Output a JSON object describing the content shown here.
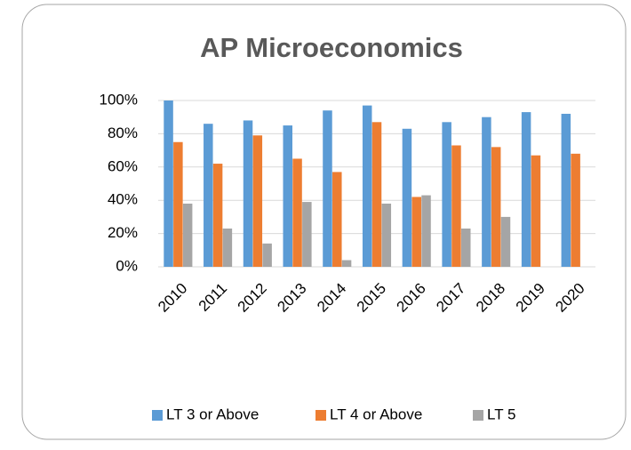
{
  "chart_data": {
    "type": "bar",
    "title": "AP Microeconomics",
    "categories": [
      "2010",
      "2011",
      "2012",
      "2013",
      "2014",
      "2015",
      "2016",
      "2017",
      "2018",
      "2019",
      "2020"
    ],
    "series": [
      {
        "name": "LT 3 or Above",
        "color": "#5b9bd5",
        "values": [
          100,
          86,
          88,
          85,
          94,
          97,
          83,
          87,
          90,
          93,
          92
        ]
      },
      {
        "name": "LT 4 or Above",
        "color": "#ed7d31",
        "values": [
          75,
          62,
          79,
          65,
          57,
          87,
          42,
          73,
          72,
          67,
          68
        ]
      },
      {
        "name": "LT 5",
        "color": "#a5a5a5",
        "values": [
          38,
          23,
          14,
          39,
          4,
          38,
          43,
          23,
          30,
          null,
          null
        ]
      }
    ],
    "ylim": [
      0,
      100
    ],
    "yticks": [
      {
        "value": 0,
        "label": "0%"
      },
      {
        "value": 20,
        "label": "20%"
      },
      {
        "value": 40,
        "label": "40%"
      },
      {
        "value": 60,
        "label": "60%"
      },
      {
        "value": 80,
        "label": "80%"
      },
      {
        "value": 100,
        "label": "100%"
      }
    ],
    "grid": true,
    "legend": "bottom"
  }
}
